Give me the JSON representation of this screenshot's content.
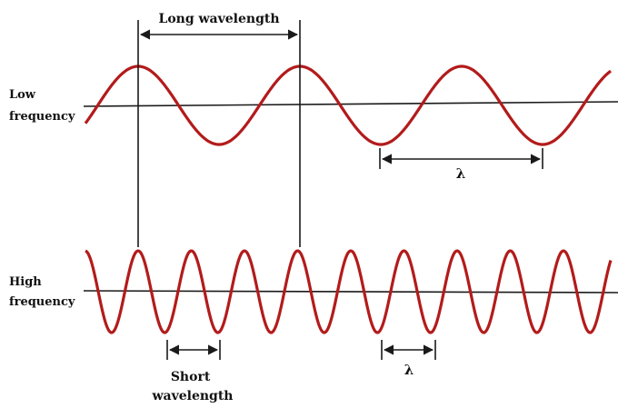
{
  "labels": {
    "long_wavelength": "Long wavelength",
    "low_frequency": [
      "Low",
      "frequency"
    ],
    "high_frequency": [
      "High",
      "frequency"
    ],
    "short_wavelength": [
      "Short",
      "wavelength"
    ],
    "lambda_low": "λ",
    "lambda_high": "λ"
  },
  "waves": {
    "low": {
      "cycles_shown": 3.3,
      "color": "#b31b1b"
    },
    "high": {
      "cycles_shown": 10,
      "color": "#b31b1b"
    }
  },
  "colors": {
    "wave": "#b31b1b",
    "ink": "#1a1a1a"
  }
}
